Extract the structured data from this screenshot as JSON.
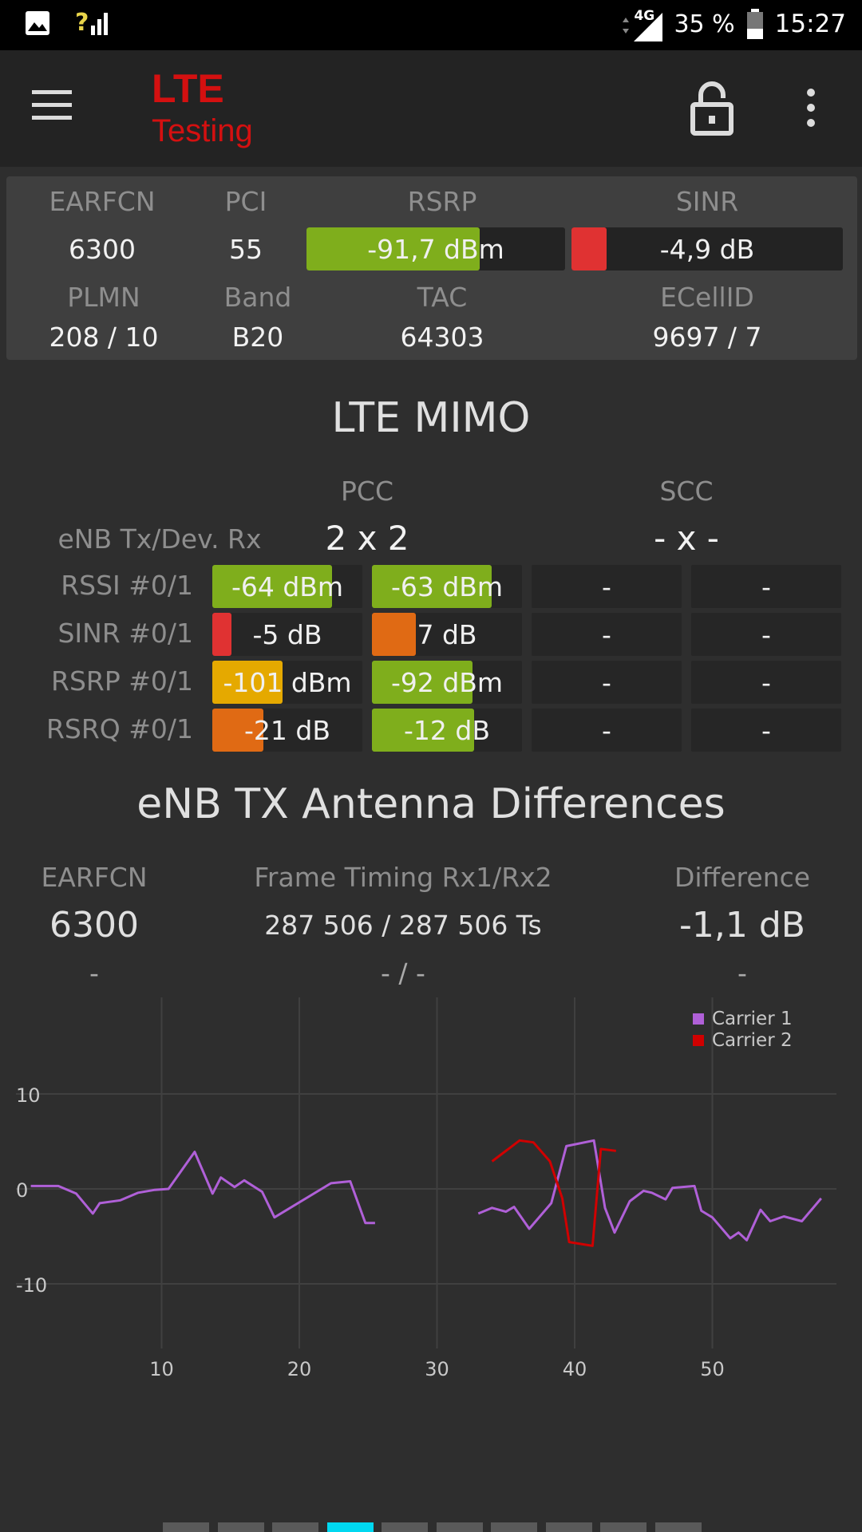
{
  "status_bar": {
    "battery": "35 %",
    "time": "15:27",
    "network": "4G",
    "signal_unknown": "?"
  },
  "app": {
    "title_line1": "LTE",
    "title_line2": "Testing"
  },
  "top_card": {
    "labels": {
      "earfcn": "EARFCN",
      "pci": "PCI",
      "rsrp": "RSRP",
      "sinr": "SINR",
      "plmn": "PLMN",
      "band": "Band",
      "tac": "TAC",
      "ecellid": "ECellID"
    },
    "earfcn": "6300",
    "pci": "55",
    "rsrp": "-91,7 dBm",
    "rsrp_fill": 0.67,
    "sinr": "-4,9 dB",
    "sinr_fill": 0.13,
    "plmn": "208 / 10",
    "band": "B20",
    "tac": "64303",
    "ecellid": "9697 / 7"
  },
  "mimo": {
    "title": "LTE MIMO",
    "pcc_label": "PCC",
    "scc_label": "SCC",
    "tx_rx_label": "eNB Tx/Dev. Rx",
    "pcc_tx_rx": "2 x 2",
    "scc_tx_rx": "- x -",
    "rows": [
      {
        "label": "RSSI #0/1",
        "pcc0": "-64 dBm",
        "pcc0_fill": 0.8,
        "pcc0_color": "#7fae1c",
        "pcc1": "-63 dBm",
        "pcc1_fill": 0.8,
        "pcc1_color": "#7fae1c",
        "scc0": "-",
        "scc1": "-"
      },
      {
        "label": "SINR #0/1",
        "pcc0": "-5 dB",
        "pcc0_fill": 0.13,
        "pcc0_color": "#e03232",
        "pcc1": "7 dB",
        "pcc1_fill": 0.29,
        "pcc1_color": "#e06a14",
        "scc0": "-",
        "scc1": "-"
      },
      {
        "label": "RSRP #0/1",
        "pcc0": "-101 dBm",
        "pcc0_fill": 0.47,
        "pcc0_color": "#e5a900",
        "pcc1": "-92 dBm",
        "pcc1_fill": 0.67,
        "pcc1_color": "#7fae1c",
        "scc0": "-",
        "scc1": "-"
      },
      {
        "label": "RSRQ #0/1",
        "pcc0": "-21 dB",
        "pcc0_fill": 0.34,
        "pcc0_color": "#e06a14",
        "pcc1": "-12 dB",
        "pcc1_fill": 0.68,
        "pcc1_color": "#7fae1c",
        "scc0": "-",
        "scc1": "-"
      }
    ]
  },
  "antenna": {
    "title": "eNB TX Antenna Differences",
    "earfcn_label": "EARFCN",
    "timing_label": "Frame Timing Rx1/Rx2",
    "diff_label": "Difference",
    "earfcn": "6300",
    "timing": "287 506 / 287 506 Ts",
    "diff": "-1,1 dB",
    "earfcn2": "-",
    "timing2": "- / -",
    "diff2": "-"
  },
  "chart_data": {
    "type": "line",
    "xlim": [
      0,
      60
    ],
    "ylim": [
      -16,
      20
    ],
    "x_ticks": [
      "10",
      "20",
      "30",
      "40",
      "50"
    ],
    "y_ticks": [
      "10",
      "0",
      "-10"
    ],
    "grid": true,
    "legend_position": "top-right",
    "colors": {
      "carrier1": "#b060d8",
      "carrier2": "#d00000"
    },
    "series": [
      {
        "name": "Carrier 1",
        "segments": [
          [
            [
              0.5,
              0.3
            ],
            [
              2.5,
              0.3
            ],
            [
              3.8,
              -0.5
            ],
            [
              5,
              -2.6
            ],
            [
              5.5,
              -1.5
            ],
            [
              7,
              -1.2
            ],
            [
              8.3,
              -0.4
            ],
            [
              9.5,
              -0.1
            ],
            [
              10.5,
              0
            ],
            [
              12.4,
              3.9
            ],
            [
              13.7,
              -0.5
            ],
            [
              14.3,
              1.2
            ],
            [
              15.3,
              0.2
            ],
            [
              16,
              0.9
            ],
            [
              17.3,
              -0.3
            ],
            [
              18.2,
              -3
            ],
            [
              22.3,
              0.6
            ],
            [
              23.7,
              0.8
            ],
            [
              24.8,
              -3.6
            ],
            [
              25.5,
              -3.6
            ]
          ],
          [
            [
              33,
              -2.6
            ],
            [
              34,
              -2
            ],
            [
              35,
              -2.4
            ],
            [
              35.6,
              -1.9
            ],
            [
              36.7,
              -4.2
            ],
            [
              38.3,
              -1.5
            ],
            [
              39.4,
              4.5
            ],
            [
              41.4,
              5.1
            ],
            [
              42.2,
              -2
            ],
            [
              42.9,
              -4.6
            ],
            [
              44,
              -1.3
            ],
            [
              45,
              -0.2
            ],
            [
              45.6,
              -0.4
            ],
            [
              46.6,
              -1.1
            ],
            [
              47.1,
              0.1
            ],
            [
              48.7,
              0.3
            ],
            [
              49.2,
              -2.3
            ],
            [
              50,
              -3
            ],
            [
              51.3,
              -5.2
            ],
            [
              51.9,
              -4.6
            ],
            [
              52.5,
              -5.4
            ],
            [
              53.5,
              -2.2
            ],
            [
              54.2,
              -3.4
            ],
            [
              55.2,
              -2.9
            ],
            [
              56.5,
              -3.4
            ],
            [
              57.9,
              -1
            ]
          ]
        ]
      },
      {
        "name": "Carrier 2",
        "segments": [
          [
            [
              34,
              2.9
            ],
            [
              36,
              5.1
            ],
            [
              37,
              4.9
            ],
            [
              38.2,
              2.9
            ],
            [
              39.1,
              -1
            ],
            [
              39.6,
              -5.6
            ],
            [
              41.3,
              -6
            ],
            [
              41.9,
              4.2
            ],
            [
              43,
              4
            ]
          ]
        ]
      }
    ]
  },
  "pager": {
    "count": 10,
    "active": 3,
    "active_color": "#00d8f0"
  }
}
